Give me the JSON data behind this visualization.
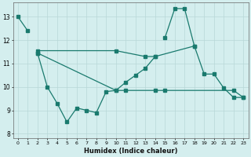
{
  "xlabel": "Humidex (Indice chaleur)",
  "bg_color": "#d4eeee",
  "line_color": "#1a7a6e",
  "grid_color": "#b8d8d8",
  "ylim": [
    7.8,
    13.6
  ],
  "xlim": [
    -0.5,
    23.5
  ],
  "line1_x": [
    0,
    1,
    15,
    16,
    17,
    18
  ],
  "line1_y": [
    13.0,
    12.4,
    12.1,
    13.35,
    13.35,
    11.75
  ],
  "line2_x": [
    2,
    10,
    13,
    14,
    18,
    19,
    20,
    21,
    22,
    23
  ],
  "line2_y": [
    11.55,
    11.55,
    11.3,
    11.3,
    11.75,
    10.55,
    10.55,
    9.95,
    9.55,
    9.55
  ],
  "line3_x": [
    2,
    10,
    11,
    14,
    15,
    22,
    23
  ],
  "line3_y": [
    11.45,
    9.85,
    9.85,
    9.85,
    9.85,
    9.85,
    9.55
  ],
  "line4_x": [
    2,
    3,
    4,
    5,
    6,
    7,
    8,
    9,
    10,
    11,
    12,
    13,
    14
  ],
  "line4_y": [
    11.45,
    10.0,
    9.3,
    8.5,
    9.1,
    9.0,
    8.9,
    9.8,
    9.85,
    10.2,
    10.5,
    10.8,
    11.3
  ]
}
